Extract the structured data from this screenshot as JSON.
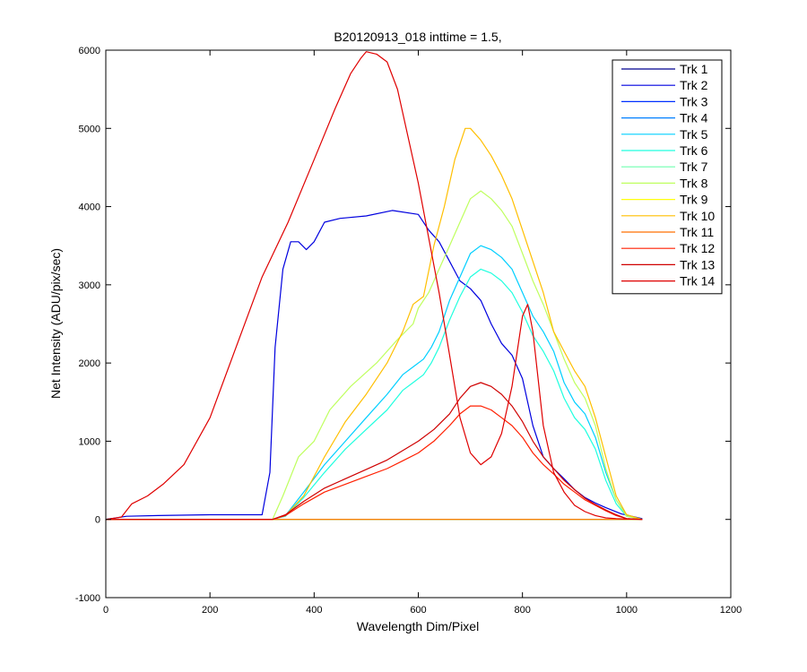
{
  "chart_data": {
    "type": "line",
    "title": "B20120913_018 inttime = 1.5,",
    "xlabel": "Wavelength Dim/Pixel",
    "ylabel": "Net Intensity (ADU/pix/sec)",
    "xlim": [
      0,
      1200
    ],
    "ylim": [
      -1000,
      6000
    ],
    "xticks": [
      0,
      200,
      400,
      600,
      800,
      1000,
      1200
    ],
    "yticks": [
      -1000,
      0,
      1000,
      2000,
      3000,
      4000,
      5000,
      6000
    ],
    "xtick_labels": [
      "0",
      "200",
      "400",
      "600",
      "800",
      "1000",
      "1200"
    ],
    "ytick_labels": [
      "-1000",
      "0",
      "1000",
      "2000",
      "3000",
      "4000",
      "5000",
      "6000"
    ],
    "grid": false,
    "legend_position": "top-right",
    "series": [
      {
        "name": "Trk 1",
        "color": "#00008f",
        "x": [
          0,
          1030
        ],
        "y": [
          0,
          0
        ]
      },
      {
        "name": "Trk 2",
        "color": "#0000df",
        "x": [
          0,
          40,
          100,
          200,
          300,
          315,
          325,
          340,
          355,
          370,
          385,
          400,
          420,
          450,
          500,
          550,
          600,
          620,
          640,
          660,
          680,
          700,
          720,
          740,
          760,
          780,
          800,
          820,
          840,
          860,
          880,
          900,
          920,
          940,
          960,
          990,
          1030
        ],
        "y": [
          0,
          40,
          50,
          60,
          60,
          600,
          2200,
          3200,
          3550,
          3550,
          3450,
          3550,
          3800,
          3850,
          3880,
          3950,
          3900,
          3700,
          3550,
          3300,
          3050,
          2950,
          2800,
          2500,
          2250,
          2100,
          1800,
          1200,
          800,
          650,
          520,
          380,
          280,
          210,
          150,
          70,
          10
        ]
      },
      {
        "name": "Trk 3",
        "color": "#002fff",
        "x": [
          0,
          1030
        ],
        "y": [
          0,
          0
        ]
      },
      {
        "name": "Trk 4",
        "color": "#007fff",
        "x": [
          0,
          1030
        ],
        "y": [
          0,
          0
        ]
      },
      {
        "name": "Trk 5",
        "color": "#00cfff",
        "x": [
          0,
          320,
          345,
          380,
          420,
          460,
          500,
          540,
          570,
          590,
          610,
          625,
          640,
          660,
          680,
          700,
          720,
          740,
          760,
          780,
          800,
          820,
          840,
          860,
          880,
          900,
          920,
          940,
          960,
          980,
          1000,
          1030
        ],
        "y": [
          0,
          0,
          50,
          350,
          700,
          1000,
          1300,
          1600,
          1850,
          1950,
          2050,
          2200,
          2400,
          2800,
          3100,
          3400,
          3500,
          3450,
          3350,
          3200,
          2900,
          2600,
          2400,
          2150,
          1750,
          1500,
          1350,
          1050,
          600,
          250,
          50,
          0
        ]
      },
      {
        "name": "Trk 6",
        "color": "#1fffdf",
        "x": [
          0,
          320,
          345,
          380,
          420,
          460,
          500,
          540,
          570,
          590,
          610,
          625,
          640,
          660,
          680,
          700,
          720,
          740,
          760,
          780,
          800,
          820,
          840,
          860,
          880,
          900,
          920,
          940,
          960,
          980,
          1000,
          1030
        ],
        "y": [
          0,
          0,
          40,
          280,
          600,
          900,
          1150,
          1400,
          1650,
          1750,
          1850,
          2000,
          2200,
          2550,
          2850,
          3100,
          3200,
          3150,
          3050,
          2900,
          2650,
          2350,
          2150,
          1900,
          1550,
          1300,
          1150,
          900,
          500,
          200,
          40,
          0
        ]
      },
      {
        "name": "Trk 7",
        "color": "#6fffaf",
        "x": [
          0,
          1030
        ],
        "y": [
          0,
          0
        ]
      },
      {
        "name": "Trk 8",
        "color": "#bfff5f",
        "x": [
          0,
          320,
          340,
          370,
          400,
          430,
          470,
          520,
          560,
          590,
          600,
          620,
          640,
          660,
          680,
          700,
          720,
          740,
          760,
          780,
          800,
          820,
          840,
          860,
          880,
          900,
          920,
          940,
          960,
          980,
          1000,
          1030
        ],
        "y": [
          0,
          0,
          300,
          800,
          1000,
          1400,
          1700,
          2000,
          2300,
          2500,
          2700,
          2900,
          3200,
          3500,
          3800,
          4100,
          4200,
          4100,
          3950,
          3750,
          3400,
          3050,
          2750,
          2400,
          2050,
          1750,
          1550,
          1200,
          650,
          250,
          40,
          0
        ]
      },
      {
        "name": "Trk 9",
        "color": "#ffff0f",
        "x": [
          0,
          1030
        ],
        "y": [
          0,
          0
        ]
      },
      {
        "name": "Trk 10",
        "color": "#ffbf00",
        "x": [
          0,
          320,
          345,
          380,
          420,
          460,
          500,
          540,
          570,
          590,
          610,
          630,
          650,
          670,
          690,
          700,
          720,
          740,
          760,
          780,
          800,
          820,
          840,
          860,
          880,
          900,
          920,
          940,
          960,
          980,
          1000,
          1030
        ],
        "y": [
          0,
          0,
          50,
          300,
          800,
          1250,
          1600,
          2000,
          2400,
          2750,
          2850,
          3500,
          4000,
          4600,
          5000,
          5000,
          4850,
          4650,
          4400,
          4100,
          3700,
          3300,
          2900,
          2400,
          2150,
          1900,
          1700,
          1300,
          800,
          300,
          60,
          0
        ]
      },
      {
        "name": "Trk 11",
        "color": "#ff6f00",
        "x": [
          0,
          1030
        ],
        "y": [
          0,
          0
        ]
      },
      {
        "name": "Trk 12",
        "color": "#ff1f00",
        "x": [
          0,
          320,
          345,
          380,
          420,
          460,
          500,
          540,
          570,
          600,
          630,
          660,
          680,
          700,
          720,
          740,
          760,
          780,
          800,
          820,
          840,
          860,
          880,
          900,
          920,
          940,
          960,
          980,
          1000,
          1030
        ],
        "y": [
          0,
          0,
          50,
          200,
          350,
          450,
          550,
          650,
          750,
          850,
          1000,
          1200,
          1350,
          1450,
          1450,
          1400,
          1300,
          1200,
          1050,
          850,
          700,
          580,
          450,
          350,
          250,
          180,
          110,
          50,
          10,
          0
        ]
      },
      {
        "name": "Trk 13",
        "color": "#cf0000",
        "x": [
          0,
          320,
          345,
          380,
          420,
          460,
          500,
          540,
          570,
          600,
          630,
          660,
          680,
          700,
          720,
          740,
          760,
          780,
          800,
          820,
          840,
          860,
          880,
          900,
          920,
          940,
          960,
          980,
          1000,
          1030
        ],
        "y": [
          0,
          0,
          60,
          230,
          400,
          520,
          640,
          760,
          880,
          1000,
          1150,
          1350,
          1550,
          1700,
          1750,
          1700,
          1600,
          1450,
          1250,
          1000,
          800,
          650,
          500,
          380,
          270,
          190,
          120,
          60,
          10,
          0
        ]
      },
      {
        "name": "Trk 14",
        "color": "#df0000",
        "x": [
          0,
          30,
          50,
          80,
          110,
          150,
          200,
          250,
          300,
          350,
          400,
          440,
          470,
          490,
          500,
          520,
          540,
          560,
          580,
          600,
          620,
          640,
          660,
          680,
          700,
          720,
          740,
          760,
          780,
          800,
          810,
          820,
          830,
          840,
          860,
          880,
          900,
          920,
          940,
          960,
          980,
          1000,
          1030
        ],
        "y": [
          0,
          30,
          200,
          300,
          450,
          700,
          1300,
          2200,
          3100,
          3800,
          4600,
          5250,
          5700,
          5900,
          5980,
          5950,
          5850,
          5500,
          4900,
          4300,
          3600,
          2900,
          2100,
          1300,
          850,
          700,
          800,
          1100,
          1700,
          2600,
          2750,
          2400,
          1800,
          1200,
          600,
          350,
          180,
          100,
          50,
          20,
          10,
          5,
          0
        ]
      }
    ]
  }
}
